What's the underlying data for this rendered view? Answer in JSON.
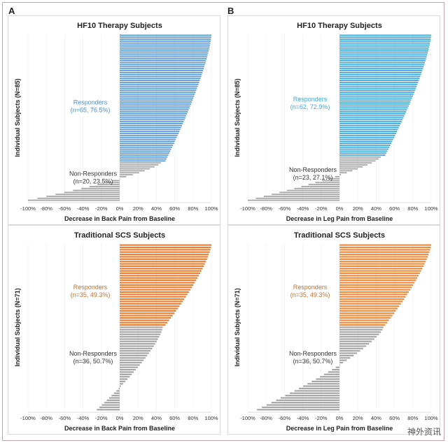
{
  "labels": {
    "A": "A",
    "B": "B"
  },
  "watermark": "神外资讯",
  "charts": [
    {
      "title": "HF10 Therapy Subjects",
      "ylabel": "Individual Subjects (N=85)",
      "xlabel": "Decrease in Back Pain from Baseline"
    },
    {
      "title": "HF10 Therapy Subjects",
      "ylabel": "Individual Subjects (N=85)",
      "xlabel": "Decrease in Leg Pain from Baseline"
    },
    {
      "title": "Traditional SCS Subjects",
      "ylabel": "Individual Subjects (N=71)",
      "xlabel": "Decrease in Back Pain from Baseline"
    },
    {
      "title": "Traditional SCS Subjects",
      "ylabel": "Individual Subjects (N=71)",
      "xlabel": "Decrease in Leg Pain from Baseline"
    }
  ],
  "chart_data": [
    {
      "type": "bar",
      "orientation": "horizontal",
      "title": "HF10 Therapy Subjects",
      "xlabel": "Decrease in Back Pain from Baseline",
      "ylabel": "Individual Subjects (N=85)",
      "xlim": [
        -100,
        100
      ],
      "xticks": [
        "-100%",
        "-80%",
        "-60%",
        "-40%",
        "-20%",
        "0%",
        "20%",
        "40%",
        "60%",
        "80%",
        "100%"
      ],
      "groups": [
        {
          "name_line1": "Responders",
          "name_line2": "(n=65, 76.5%)",
          "color": "#5b9bd5",
          "count": 65,
          "max": 100,
          "min": 50
        },
        {
          "name_line1": "Non-Responders",
          "name_line2": "(n=20, 23.5%)",
          "color": "#a6a6a6",
          "count": 20,
          "max": 45,
          "min": -100,
          "min_display": -20
        }
      ],
      "label_color": "#4a8fcd"
    },
    {
      "type": "bar",
      "orientation": "horizontal",
      "title": "HF10 Therapy Subjects",
      "xlabel": "Decrease in Leg Pain from Baseline",
      "ylabel": "Individual Subjects (N=85)",
      "xlim": [
        -100,
        100
      ],
      "xticks": [
        "-100%",
        "-80%",
        "-60%",
        "-40%",
        "-20%",
        "0%",
        "20%",
        "40%",
        "60%",
        "80%",
        "100%"
      ],
      "groups": [
        {
          "name_line1": "Responders",
          "name_line2": "(n=62, 72.9%)",
          "color": "#3fa9dc",
          "count": 62,
          "max": 100,
          "min": 50
        },
        {
          "name_line1": "Non-Responders",
          "name_line2": "(n=23, 27.1%)",
          "color": "#a6a6a6",
          "count": 23,
          "max": 45,
          "min": -100,
          "min_display": -10
        }
      ],
      "label_color": "#3fa9dc"
    },
    {
      "type": "bar",
      "orientation": "horizontal",
      "title": "Traditional SCS Subjects",
      "xlabel": "Decrease in Back Pain from Baseline",
      "ylabel": "Individual Subjects (N=71)",
      "xlim": [
        -100,
        100
      ],
      "xticks": [
        "-100%",
        "-80%",
        "-60%",
        "-40%",
        "-20%",
        "0%",
        "20%",
        "40%",
        "60%",
        "80%",
        "100%"
      ],
      "groups": [
        {
          "name_line1": "Responders",
          "name_line2": "(n=35, 49.3%)",
          "color": "#ed7d31",
          "count": 35,
          "max": 100,
          "min": 50
        },
        {
          "name_line1": "Non-Responders",
          "name_line2": "(n=36, 50.7%)",
          "color": "#a6a6a6",
          "count": 36,
          "max": 47,
          "min": -25
        }
      ],
      "label_color": "#c8712c"
    },
    {
      "type": "bar",
      "orientation": "horizontal",
      "title": "Traditional SCS Subjects",
      "xlabel": "Decrease in Leg Pain from Baseline",
      "ylabel": "Individual Subjects (N=71)",
      "xlim": [
        -100,
        100
      ],
      "xticks": [
        "-100%",
        "-80%",
        "-60%",
        "-40%",
        "-20%",
        "0%",
        "20%",
        "40%",
        "60%",
        "80%",
        "100%"
      ],
      "groups": [
        {
          "name_line1": "Responders",
          "name_line2": "(n=35, 49.3%)",
          "color": "#f08a3c",
          "count": 35,
          "max": 100,
          "min": 50
        },
        {
          "name_line1": "Non-Responders",
          "name_line2": "(n=36, 50.7%)",
          "color": "#a6a6a6",
          "count": 36,
          "max": 48,
          "min": -90
        }
      ],
      "label_color": "#c8712c"
    }
  ]
}
